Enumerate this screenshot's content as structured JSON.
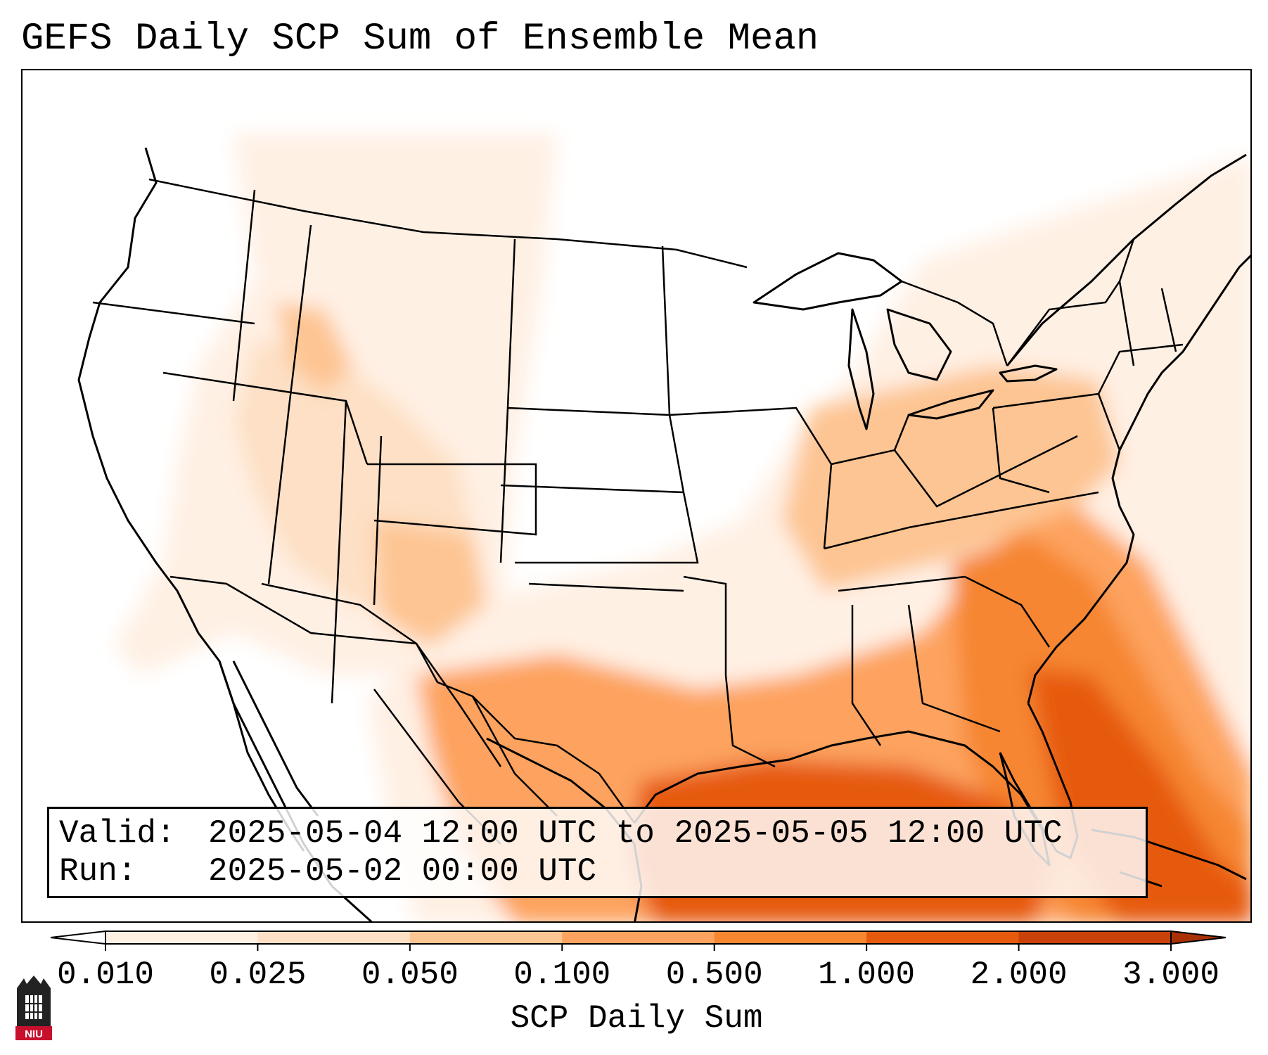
{
  "title": "GEFS Daily SCP Sum of Ensemble Mean",
  "info": {
    "valid_key": "Valid:",
    "valid_value": "2025-05-04 12:00 UTC to 2025-05-05 12:00 UTC",
    "run_key": "Run:",
    "run_value": "2025-05-02 00:00 UTC"
  },
  "colorbar": {
    "label": "SCP Daily Sum",
    "ticks": [
      "0.010",
      "0.025",
      "0.050",
      "0.100",
      "0.500",
      "1.000",
      "2.000",
      "3.000"
    ],
    "colors": [
      "#fff0e4",
      "#fde0c5",
      "#fdc593",
      "#fda35f",
      "#f68630",
      "#e65a0d",
      "#c8420a",
      "#a83206"
    ],
    "extend": "both"
  },
  "logo": {
    "text": "NIU",
    "colors": {
      "red": "#c8102e",
      "dark": "#222222"
    }
  },
  "map_colors": {
    "level_1": "#fff0e4",
    "level_2": "#fde0c5",
    "level_3": "#fdc593",
    "level_4": "#fda35f",
    "level_5": "#f68630",
    "level_6": "#e65a0d"
  }
}
